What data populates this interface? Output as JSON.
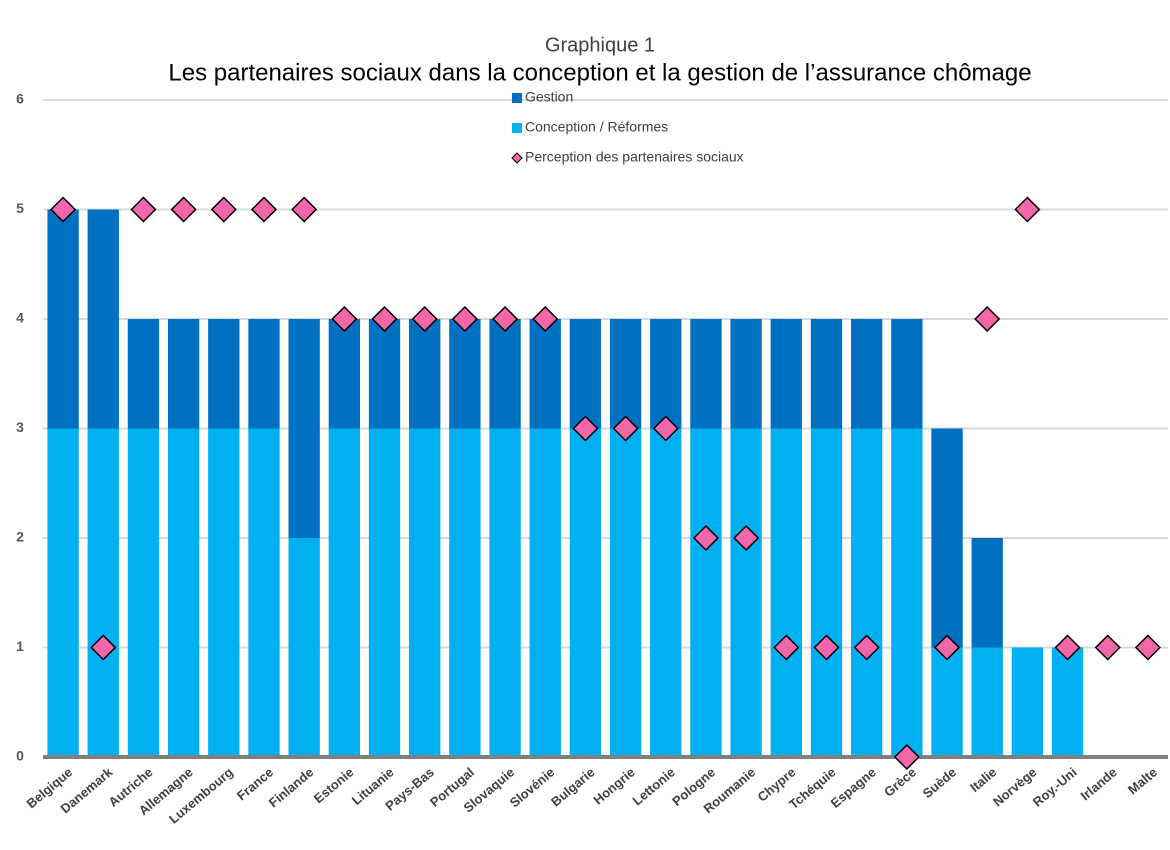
{
  "chart_data": {
    "type": "bar",
    "stacked": true,
    "title": "Les partenaires sociaux dans la conception et la gestion de l’assurance chômage",
    "subtitle": "Graphique 1",
    "categories": [
      "Belgique",
      "Danemark",
      "Autriche",
      "Allemagne",
      "Luxembourg",
      "France",
      "Finlande",
      "Estonie",
      "Lituanie",
      "Pays-Bas",
      "Portugal",
      "Slovaquie",
      "Slovénie",
      "Bulgarie",
      "Hongrie",
      "Lettonie",
      "Pologne",
      "Roumanie",
      "Chypre",
      "Tchéquie",
      "Espagne",
      "Grèce",
      "Suède",
      "Italie",
      "Norvège",
      "Roy.-Uni",
      "Irlande",
      "Malte"
    ],
    "series": [
      {
        "name": "Gestion",
        "type": "bar",
        "color": "#0070c0",
        "values": [
          2,
          2,
          1,
          1,
          1,
          1,
          2,
          1,
          1,
          1,
          1,
          1,
          1,
          1,
          1,
          1,
          1,
          1,
          1,
          1,
          1,
          1,
          2,
          1,
          0,
          0,
          0,
          0
        ]
      },
      {
        "name": "Conception / Réformes",
        "type": "bar",
        "color": "#00b0f0",
        "values": [
          3,
          3,
          3,
          3,
          3,
          3,
          2,
          3,
          3,
          3,
          3,
          3,
          3,
          3,
          3,
          3,
          3,
          3,
          3,
          3,
          3,
          3,
          1,
          1,
          1,
          1,
          0,
          0
        ]
      },
      {
        "name": "Perception des partenaires sociaux",
        "type": "scatter",
        "color": "#f266aa",
        "values": [
          5,
          1,
          5,
          5,
          5,
          5,
          5,
          4,
          4,
          4,
          4,
          4,
          4,
          3,
          3,
          3,
          2,
          2,
          1,
          1,
          1,
          0,
          1,
          4,
          5,
          1,
          1,
          1
        ]
      }
    ],
    "ylim": [
      0,
      6
    ],
    "yticks": [
      0,
      1,
      2,
      3,
      4,
      5,
      6
    ],
    "grid": true
  }
}
